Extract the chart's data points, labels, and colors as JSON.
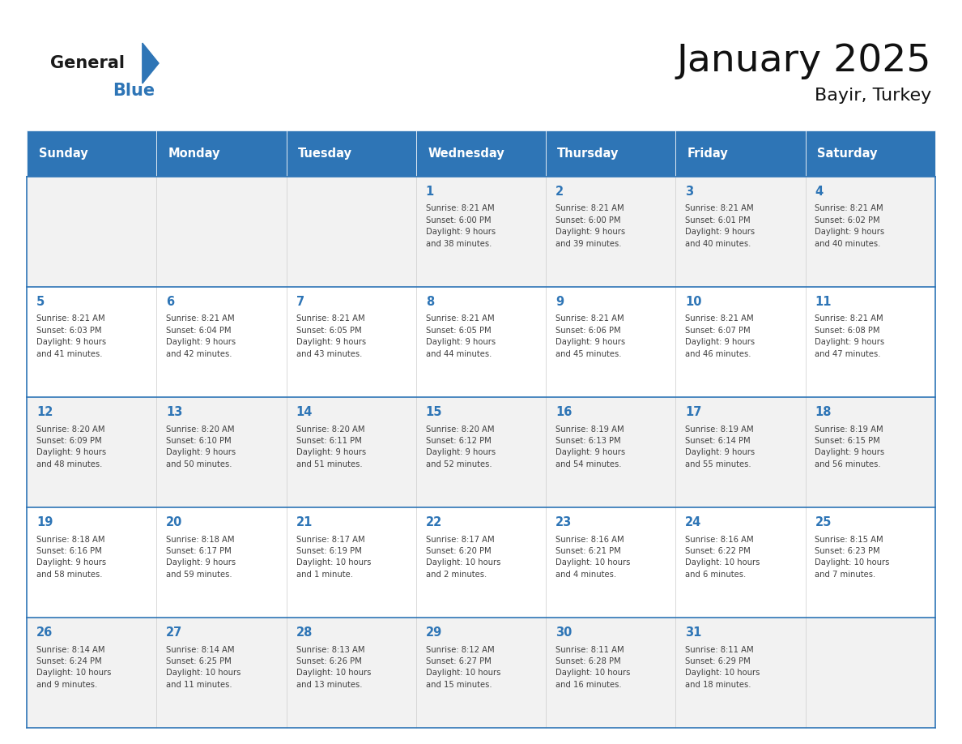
{
  "title": "January 2025",
  "subtitle": "Bayir, Turkey",
  "days_of_week": [
    "Sunday",
    "Monday",
    "Tuesday",
    "Wednesday",
    "Thursday",
    "Friday",
    "Saturday"
  ],
  "header_color": "#2e75b6",
  "header_text_color": "#ffffff",
  "row_bg_odd": "#f2f2f2",
  "row_bg_even": "#ffffff",
  "border_color": "#2e75b6",
  "day_number_color": "#2e75b6",
  "text_color": "#404040",
  "logo_general_color": "#1a1a1a",
  "logo_blue_color": "#2e75b6",
  "calendar_data": [
    [
      {
        "day": null,
        "info": null
      },
      {
        "day": null,
        "info": null
      },
      {
        "day": null,
        "info": null
      },
      {
        "day": 1,
        "info": "Sunrise: 8:21 AM\nSunset: 6:00 PM\nDaylight: 9 hours\nand 38 minutes."
      },
      {
        "day": 2,
        "info": "Sunrise: 8:21 AM\nSunset: 6:00 PM\nDaylight: 9 hours\nand 39 minutes."
      },
      {
        "day": 3,
        "info": "Sunrise: 8:21 AM\nSunset: 6:01 PM\nDaylight: 9 hours\nand 40 minutes."
      },
      {
        "day": 4,
        "info": "Sunrise: 8:21 AM\nSunset: 6:02 PM\nDaylight: 9 hours\nand 40 minutes."
      }
    ],
    [
      {
        "day": 5,
        "info": "Sunrise: 8:21 AM\nSunset: 6:03 PM\nDaylight: 9 hours\nand 41 minutes."
      },
      {
        "day": 6,
        "info": "Sunrise: 8:21 AM\nSunset: 6:04 PM\nDaylight: 9 hours\nand 42 minutes."
      },
      {
        "day": 7,
        "info": "Sunrise: 8:21 AM\nSunset: 6:05 PM\nDaylight: 9 hours\nand 43 minutes."
      },
      {
        "day": 8,
        "info": "Sunrise: 8:21 AM\nSunset: 6:05 PM\nDaylight: 9 hours\nand 44 minutes."
      },
      {
        "day": 9,
        "info": "Sunrise: 8:21 AM\nSunset: 6:06 PM\nDaylight: 9 hours\nand 45 minutes."
      },
      {
        "day": 10,
        "info": "Sunrise: 8:21 AM\nSunset: 6:07 PM\nDaylight: 9 hours\nand 46 minutes."
      },
      {
        "day": 11,
        "info": "Sunrise: 8:21 AM\nSunset: 6:08 PM\nDaylight: 9 hours\nand 47 minutes."
      }
    ],
    [
      {
        "day": 12,
        "info": "Sunrise: 8:20 AM\nSunset: 6:09 PM\nDaylight: 9 hours\nand 48 minutes."
      },
      {
        "day": 13,
        "info": "Sunrise: 8:20 AM\nSunset: 6:10 PM\nDaylight: 9 hours\nand 50 minutes."
      },
      {
        "day": 14,
        "info": "Sunrise: 8:20 AM\nSunset: 6:11 PM\nDaylight: 9 hours\nand 51 minutes."
      },
      {
        "day": 15,
        "info": "Sunrise: 8:20 AM\nSunset: 6:12 PM\nDaylight: 9 hours\nand 52 minutes."
      },
      {
        "day": 16,
        "info": "Sunrise: 8:19 AM\nSunset: 6:13 PM\nDaylight: 9 hours\nand 54 minutes."
      },
      {
        "day": 17,
        "info": "Sunrise: 8:19 AM\nSunset: 6:14 PM\nDaylight: 9 hours\nand 55 minutes."
      },
      {
        "day": 18,
        "info": "Sunrise: 8:19 AM\nSunset: 6:15 PM\nDaylight: 9 hours\nand 56 minutes."
      }
    ],
    [
      {
        "day": 19,
        "info": "Sunrise: 8:18 AM\nSunset: 6:16 PM\nDaylight: 9 hours\nand 58 minutes."
      },
      {
        "day": 20,
        "info": "Sunrise: 8:18 AM\nSunset: 6:17 PM\nDaylight: 9 hours\nand 59 minutes."
      },
      {
        "day": 21,
        "info": "Sunrise: 8:17 AM\nSunset: 6:19 PM\nDaylight: 10 hours\nand 1 minute."
      },
      {
        "day": 22,
        "info": "Sunrise: 8:17 AM\nSunset: 6:20 PM\nDaylight: 10 hours\nand 2 minutes."
      },
      {
        "day": 23,
        "info": "Sunrise: 8:16 AM\nSunset: 6:21 PM\nDaylight: 10 hours\nand 4 minutes."
      },
      {
        "day": 24,
        "info": "Sunrise: 8:16 AM\nSunset: 6:22 PM\nDaylight: 10 hours\nand 6 minutes."
      },
      {
        "day": 25,
        "info": "Sunrise: 8:15 AM\nSunset: 6:23 PM\nDaylight: 10 hours\nand 7 minutes."
      }
    ],
    [
      {
        "day": 26,
        "info": "Sunrise: 8:14 AM\nSunset: 6:24 PM\nDaylight: 10 hours\nand 9 minutes."
      },
      {
        "day": 27,
        "info": "Sunrise: 8:14 AM\nSunset: 6:25 PM\nDaylight: 10 hours\nand 11 minutes."
      },
      {
        "day": 28,
        "info": "Sunrise: 8:13 AM\nSunset: 6:26 PM\nDaylight: 10 hours\nand 13 minutes."
      },
      {
        "day": 29,
        "info": "Sunrise: 8:12 AM\nSunset: 6:27 PM\nDaylight: 10 hours\nand 15 minutes."
      },
      {
        "day": 30,
        "info": "Sunrise: 8:11 AM\nSunset: 6:28 PM\nDaylight: 10 hours\nand 16 minutes."
      },
      {
        "day": 31,
        "info": "Sunrise: 8:11 AM\nSunset: 6:29 PM\nDaylight: 10 hours\nand 18 minutes."
      },
      {
        "day": null,
        "info": null
      }
    ]
  ],
  "fig_width": 11.88,
  "fig_height": 9.18,
  "dpi": 100
}
